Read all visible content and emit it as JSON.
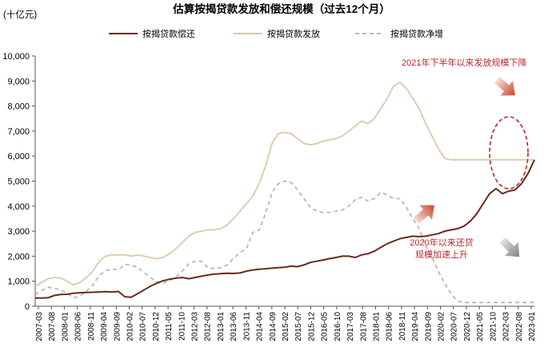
{
  "chart_data": {
    "type": "line",
    "title": "估算按揭贷款发放和偿还规模（过去12个月）",
    "unit_label": "(十亿元)",
    "ylim": [
      0,
      10000
    ],
    "y_ticks": [
      "0",
      "1,000",
      "2,000",
      "3,000",
      "4,000",
      "5,000",
      "6,000",
      "7,000",
      "8,000",
      "9,000",
      "10,000"
    ],
    "x_ticks": [
      "2007-03",
      "2007-08",
      "2008-01",
      "2008-06",
      "2008-11",
      "2009-04",
      "2009-09",
      "2010-02",
      "2010-07",
      "2010-12",
      "2011-05",
      "2011-10",
      "2012-03",
      "2012-08",
      "2013-01",
      "2013-06",
      "2013-11",
      "2014-04",
      "2014-09",
      "2015-02",
      "2015-07",
      "2015-12",
      "2016-05",
      "2016-10",
      "2017-03",
      "2017-08",
      "2018-01",
      "2018-06",
      "2018-11",
      "2019-04",
      "2019-09",
      "2020-02",
      "2020-07",
      "2020-12",
      "2021-05",
      "2021-10",
      "2022-03",
      "2022-08",
      "2023-01"
    ],
    "legend": "top",
    "grid": false,
    "x": [
      0,
      1,
      2,
      3,
      4,
      5,
      6,
      7,
      8,
      9,
      10,
      11,
      12,
      13,
      14,
      15,
      16,
      17,
      18,
      19,
      20,
      21,
      22,
      23,
      24,
      25,
      26,
      27,
      28,
      29,
      30,
      31,
      32,
      33,
      34,
      35,
      36,
      37,
      38,
      39,
      40,
      41,
      42,
      43,
      44,
      45,
      46,
      47,
      48,
      49,
      50,
      51,
      52,
      53,
      54,
      55,
      56,
      57,
      58,
      59,
      60,
      61,
      62,
      63,
      64,
      65,
      66,
      67,
      68,
      69,
      70,
      71,
      72,
      73,
      74,
      75,
      76,
      77,
      78
    ],
    "series": [
      {
        "name": "按揭贷款偿还",
        "color": "#6b2a1a",
        "dash": false,
        "values": [
          330,
          330,
          340,
          430,
          470,
          480,
          520,
          540,
          550,
          560,
          570,
          580,
          570,
          590,
          380,
          360,
          500,
          650,
          800,
          920,
          1020,
          1080,
          1120,
          1150,
          1100,
          1150,
          1200,
          1250,
          1280,
          1300,
          1320,
          1310,
          1330,
          1400,
          1450,
          1480,
          1500,
          1520,
          1540,
          1560,
          1600,
          1580,
          1650,
          1750,
          1800,
          1850,
          1900,
          1950,
          2000,
          2000,
          1950,
          2050,
          2100,
          2200,
          2350,
          2500,
          2600,
          2700,
          2750,
          2800,
          2780,
          2800,
          2850,
          2900,
          3000,
          3050,
          3100,
          3200,
          3400,
          3700,
          4100,
          4500,
          4700,
          4500,
          4600,
          4650,
          4900,
          5300,
          5850
        ]
      },
      {
        "name": "按揭贷款发放",
        "color": "#ddc9a8",
        "dash": false,
        "values": [
          800,
          950,
          1100,
          1150,
          1120,
          1000,
          850,
          950,
          1150,
          1400,
          1800,
          2000,
          2050,
          2050,
          2050,
          2000,
          2050,
          2000,
          1950,
          1900,
          1950,
          2100,
          2300,
          2550,
          2800,
          2950,
          3000,
          3050,
          3050,
          3100,
          3250,
          3500,
          3800,
          4100,
          4400,
          4900,
          5600,
          6500,
          6900,
          6950,
          6900,
          6700,
          6500,
          6450,
          6500,
          6600,
          6650,
          6700,
          6800,
          7000,
          7200,
          7400,
          7300,
          7500,
          7900,
          8300,
          8800,
          8950,
          8700,
          8300,
          7900,
          7300,
          6800,
          6300,
          5900,
          5850,
          5850,
          5850,
          5850,
          5850,
          5850,
          5850,
          5850,
          5850,
          5850,
          5850,
          5850,
          5850,
          5850
        ]
      },
      {
        "name": "按揭贷款净增",
        "color": "#b8b8b8",
        "dash": true,
        "values": [
          470,
          620,
          760,
          720,
          650,
          520,
          330,
          410,
          600,
          840,
          1230,
          1420,
          1480,
          1460,
          1670,
          1640,
          1550,
          1350,
          1150,
          980,
          930,
          1020,
          1180,
          1400,
          1700,
          1800,
          1800,
          1530,
          1510,
          1540,
          1650,
          1920,
          2150,
          2300,
          2950,
          3050,
          3700,
          4550,
          4900,
          5000,
          4950,
          4650,
          4300,
          3950,
          3800,
          3750,
          3750,
          3800,
          3850,
          4000,
          4250,
          4350,
          4200,
          4300,
          4550,
          4450,
          4300,
          4300,
          3950,
          3500,
          3100,
          2400,
          1950,
          1400,
          900,
          500,
          200,
          150,
          150,
          150,
          150,
          150,
          150,
          150,
          150,
          150,
          150,
          150,
          150
        ]
      }
    ],
    "annotations": {
      "top_right": "2021年下半年以来发放规模下降",
      "bottom_line1": "2020年以来还贷",
      "bottom_line2": "规模加速上升"
    }
  }
}
